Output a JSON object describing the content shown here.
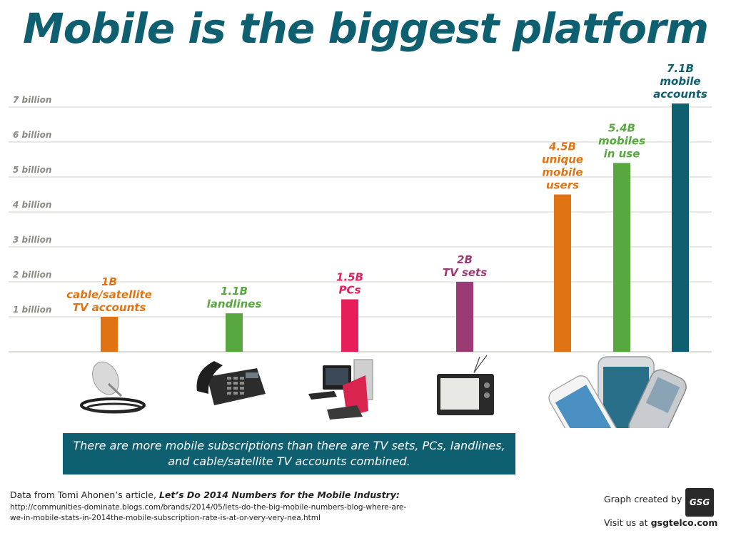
{
  "title": "Mobile is the biggest platform",
  "chart_data": {
    "type": "bar",
    "title": "Mobile is the biggest platform",
    "ylim": [
      0,
      7.1
    ],
    "y_ticks": [
      {
        "value": 1,
        "label": "1 billion"
      },
      {
        "value": 2,
        "label": "2 billion"
      },
      {
        "value": 3,
        "label": "3 billion"
      },
      {
        "value": 4,
        "label": "4 billion"
      },
      {
        "value": 5,
        "label": "5 billion"
      },
      {
        "value": 6,
        "label": "6 billion"
      },
      {
        "value": 7,
        "label": "7 billion"
      }
    ],
    "grid": true,
    "bars": [
      {
        "value": 1.0,
        "color": "#e07415",
        "label_lines": [
          "1B",
          "cable/satellite",
          "TV accounts"
        ],
        "icon": "satellite-dish-icon"
      },
      {
        "value": 1.1,
        "color": "#58a83f",
        "label_lines": [
          "1.1B",
          "landlines"
        ],
        "icon": "desk-phone-icon"
      },
      {
        "value": 1.5,
        "color": "#e81e5a",
        "label_lines": [
          "1.5B",
          "PCs"
        ],
        "icon": "desktop-pc-icon"
      },
      {
        "value": 2.0,
        "color": "#9c3a75",
        "label_lines": [
          "2B",
          "TV sets"
        ],
        "icon": "tv-set-icon"
      },
      {
        "value": 4.5,
        "color": "#e07415",
        "label_lines": [
          "4.5B",
          "unique",
          "mobile",
          "users"
        ],
        "icon": "mobile-phones-icon"
      },
      {
        "value": 5.4,
        "color": "#58a83f",
        "label_lines": [
          "5.4B",
          "mobiles",
          "in use"
        ]
      },
      {
        "value": 7.1,
        "color": "#0e5f70",
        "label_lines": [
          "7.1B",
          "mobile",
          "accounts"
        ]
      }
    ]
  },
  "callout": "There are more mobile subscriptions than there are TV sets, PCs, landlines, and cable/satellite TV accounts combined.",
  "source": {
    "prefix": "Data from Tomi Ahonen’s article, ",
    "article": "Let’s Do 2014 Numbers for the Mobile Industry:",
    "url_line1": "http://communities-dominate.blogs.com/brands/2014/05/lets-do-the-big-mobile-numbers-blog-where-are-",
    "url_line2": "we-in-mobile-stats-in-2014the-mobile-subscription-rate-is-at-or-very-very-nea.html"
  },
  "credit": {
    "label": "Graph created by",
    "logo_text": "GSG",
    "visit_prefix": "Visit us at ",
    "site": "gsgtelco.com"
  },
  "colors": {
    "title": "#0e5f70",
    "callout_bg": "#0e5f70"
  }
}
